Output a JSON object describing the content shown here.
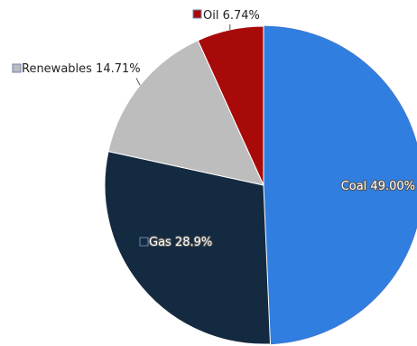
{
  "chart_data": {
    "type": "pie",
    "slices": [
      {
        "label": "Coal",
        "value": 49.0,
        "display": "49.00%",
        "color": "#2f7ee0"
      },
      {
        "label": "Gas",
        "value": 28.9,
        "display": "28.9%",
        "color": "#142a40"
      },
      {
        "label": "Renewables",
        "value": 14.71,
        "display": "14.71%",
        "color": "#bdbdbd"
      },
      {
        "label": "Oil",
        "value": 6.74,
        "display": "6.74%",
        "color": "#a80a0a"
      }
    ]
  }
}
